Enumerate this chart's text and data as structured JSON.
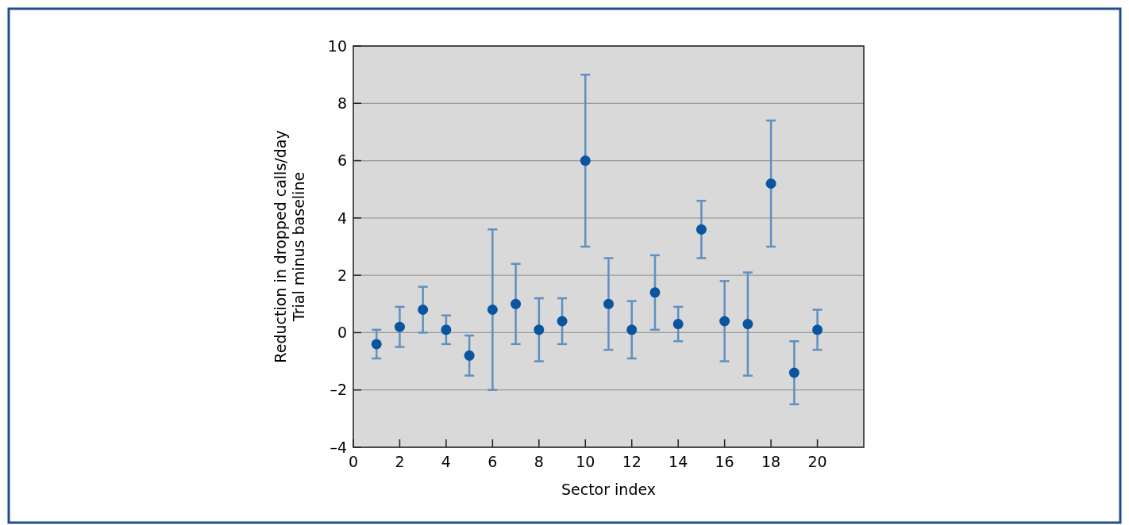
{
  "chart_data": {
    "type": "scatter",
    "xlabel": "Sector index",
    "ylabel": "Reduction in dropped calls/day\nTrial minus baseline",
    "x": [
      1,
      2,
      3,
      4,
      5,
      6,
      7,
      8,
      9,
      10,
      11,
      12,
      13,
      14,
      15,
      16,
      17,
      18,
      19,
      20
    ],
    "series": [
      {
        "color": "#0a54a0",
        "values": [
          -0.4,
          0.2,
          0.8,
          0.1,
          -0.8,
          0.8,
          1.0,
          0.1,
          0.4,
          6,
          1.0,
          0.1,
          1.4,
          0.3,
          3.6,
          0.4,
          0.3,
          5.2,
          -1.4,
          0.1
        ],
        "errors": [
          0.5,
          0.7,
          0.8,
          0.5,
          0.7,
          2.8,
          1.4,
          1.1,
          0.8,
          3,
          1.6,
          1.0,
          1.3,
          0.6,
          1.0,
          1.4,
          1.8,
          2.2,
          1.1,
          0.7
        ]
      }
    ],
    "xlim": [
      0,
      22
    ],
    "xticks": [
      0,
      2,
      4,
      6,
      8,
      10,
      12,
      14,
      16,
      18,
      20
    ],
    "ylim": [
      -4,
      10
    ],
    "yticks": [
      {
        "value": -4,
        "label": "–4"
      },
      {
        "value": -2,
        "label": "–2"
      },
      0,
      2,
      4,
      6,
      8,
      10
    ],
    "grid": "y",
    "marker": "circle"
  }
}
